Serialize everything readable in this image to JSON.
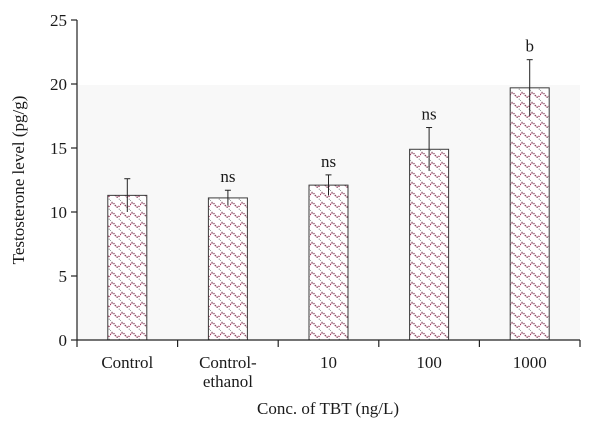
{
  "chart_data": {
    "type": "bar",
    "categories": [
      "Control",
      "Control-ethanol",
      "10",
      "100",
      "1000"
    ],
    "category_label_lines": [
      [
        "Control"
      ],
      [
        "Control-",
        "ethanol"
      ],
      [
        "10"
      ],
      [
        "100"
      ],
      [
        "1000"
      ]
    ],
    "values": [
      11.3,
      11.1,
      12.1,
      14.9,
      19.7
    ],
    "error": [
      1.3,
      0.6,
      0.8,
      1.7,
      2.2
    ],
    "significance": [
      "",
      "ns",
      "ns",
      "ns",
      "b"
    ],
    "xlabel": "Conc. of TBT (ng/L)",
    "ylabel": "Testosterone level (pg/g)",
    "ylim": [
      0,
      25
    ],
    "yticks": [
      0,
      5,
      10,
      15,
      20,
      25
    ],
    "bar_fill": "hatched-pattern",
    "bar_color": "#9c2a55",
    "background_band": "#f7f7f7"
  }
}
